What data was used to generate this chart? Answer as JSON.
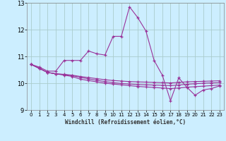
{
  "title": "",
  "xlabel": "Windchill (Refroidissement éolien,°C)",
  "ylabel": "",
  "background_color": "#cceeff",
  "line_color": "#993399",
  "grid_color": "#aacccc",
  "xlim": [
    -0.5,
    23.5
  ],
  "ylim": [
    9,
    13
  ],
  "yticks": [
    9,
    10,
    11,
    12,
    13
  ],
  "xticks": [
    0,
    1,
    2,
    3,
    4,
    5,
    6,
    7,
    8,
    9,
    10,
    11,
    12,
    13,
    14,
    15,
    16,
    17,
    18,
    19,
    20,
    21,
    22,
    23
  ],
  "series": [
    [
      10.7,
      10.6,
      10.45,
      10.45,
      10.85,
      10.85,
      10.85,
      11.2,
      11.1,
      11.05,
      11.75,
      11.75,
      12.85,
      12.45,
      11.95,
      10.85,
      10.3,
      9.35,
      10.2,
      9.85,
      9.55,
      9.75,
      9.8,
      9.9
    ],
    [
      10.7,
      10.55,
      10.4,
      10.35,
      10.3,
      10.25,
      10.15,
      10.1,
      10.05,
      10.0,
      9.97,
      9.94,
      9.91,
      9.88,
      9.86,
      9.84,
      9.82,
      9.8,
      9.82,
      9.85,
      9.87,
      9.89,
      9.91,
      9.93
    ],
    [
      10.7,
      10.55,
      10.4,
      10.35,
      10.32,
      10.28,
      10.22,
      10.16,
      10.11,
      10.06,
      10.02,
      9.99,
      9.97,
      9.95,
      9.94,
      9.93,
      9.92,
      9.91,
      9.93,
      9.96,
      9.98,
      10.0,
      10.01,
      10.02
    ],
    [
      10.7,
      10.55,
      10.4,
      10.35,
      10.33,
      10.3,
      10.25,
      10.21,
      10.17,
      10.13,
      10.1,
      10.08,
      10.06,
      10.05,
      10.04,
      10.03,
      10.02,
      10.01,
      10.03,
      10.05,
      10.06,
      10.07,
      10.08,
      10.09
    ]
  ]
}
